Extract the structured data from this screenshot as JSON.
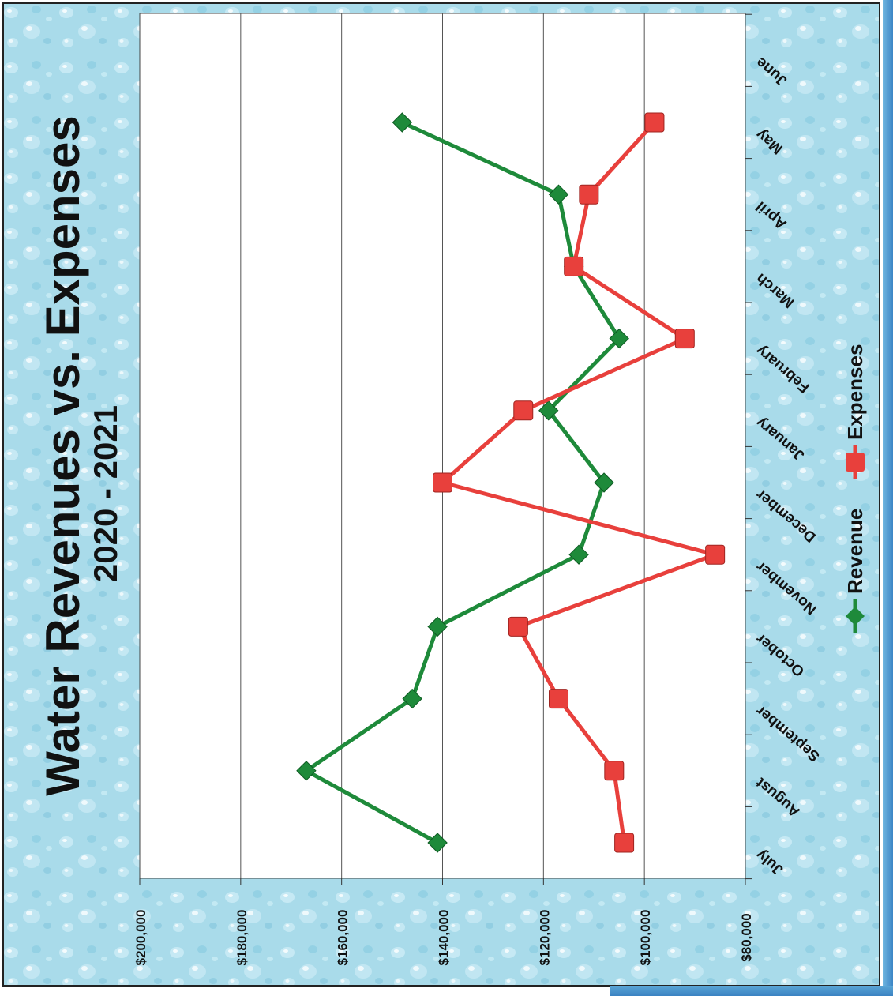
{
  "chart_data": {
    "type": "line",
    "title": "Water Revenues vs. Expenses",
    "subtitle": "2020 - 2021",
    "categories": [
      "July",
      "August",
      "September",
      "October",
      "November",
      "December",
      "January",
      "February",
      "March",
      "April",
      "May",
      "June"
    ],
    "series": [
      {
        "name": "Revenue",
        "color": "#1e8a3a",
        "marker": "diamond",
        "values": [
          141000,
          167000,
          146000,
          141000,
          113000,
          108000,
          119000,
          105000,
          114000,
          117000,
          148000,
          null
        ]
      },
      {
        "name": "Expenses",
        "color": "#e8403c",
        "marker": "square",
        "values": [
          104000,
          106000,
          117000,
          125000,
          86000,
          140000,
          124000,
          92000,
          114000,
          111000,
          98000,
          null
        ]
      }
    ],
    "yaxis": {
      "min": 80000,
      "max": 200000,
      "step": 20000,
      "tick_labels": [
        "$80,000",
        "$100,000",
        "$120,000",
        "$140,000",
        "$160,000",
        "$180,000",
        "$200,000"
      ]
    },
    "grid": true,
    "legend_position": "right",
    "orientation": "rotated-90-clockwise",
    "background": "water-droplets",
    "background_color": "#a9dbea",
    "plot_background": "#ffffff"
  }
}
